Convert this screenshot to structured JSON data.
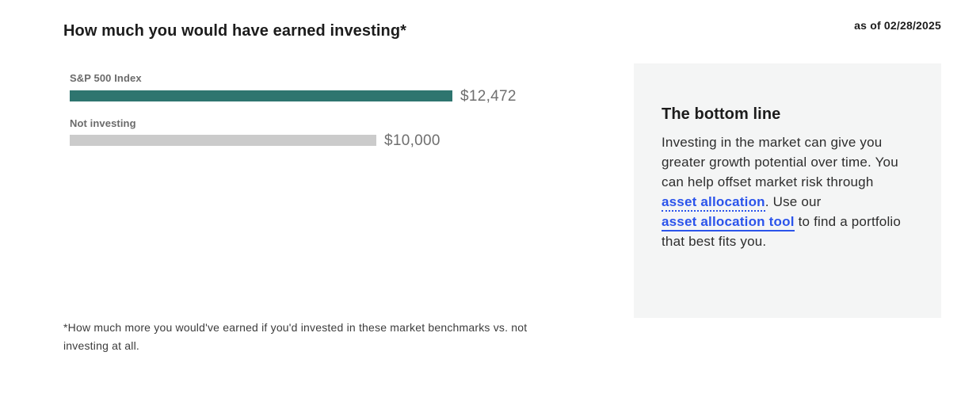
{
  "header": {
    "title": "How much you would have earned investing*",
    "as_of": "as of 02/28/2025"
  },
  "chart_data": {
    "type": "bar",
    "orientation": "horizontal",
    "title": "How much you would have earned investing*",
    "categories": [
      "S&P 500 Index",
      "Not investing"
    ],
    "values": [
      12472,
      10000
    ],
    "value_labels": [
      "$12,472",
      "$10,000"
    ],
    "bar_colors": [
      "#2e756f",
      "#cbcbcb"
    ],
    "xlim": [
      0,
      12472
    ],
    "grid": false,
    "legend": false
  },
  "bottom_line": {
    "title": "The bottom line",
    "text_before_link1": "Investing in the market can give you greater growth potential over time. You can help offset market risk through ",
    "link1_label": "asset allocation",
    "text_between_links": ". Use our ",
    "link2_label": "asset allocation tool",
    "text_after_link2": " to find a portfolio that best fits you."
  },
  "footnote": "*How much more you would've earned if you'd invested in these market benchmarks vs. not investing at all.",
  "colors": {
    "accent_teal": "#2e756f",
    "bar_gray": "#cbcbcb",
    "link_blue": "#2b54eb",
    "box_background": "#f4f5f5"
  }
}
